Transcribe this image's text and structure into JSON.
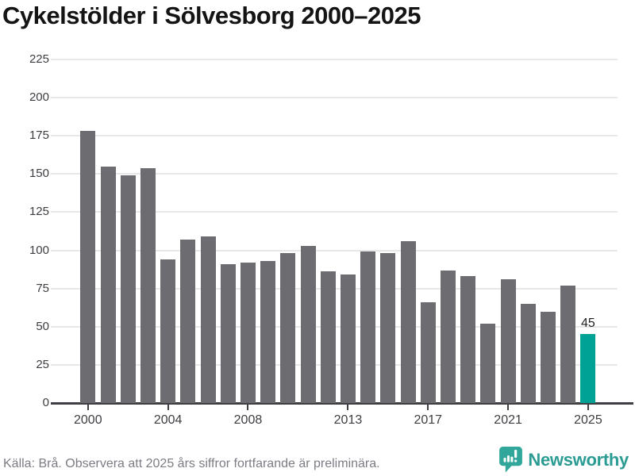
{
  "title": "Cykelstölder i Sölvesborg 2000–2025",
  "source_note": "Källa: Brå. Observera att 2025 års siffror fortfarande är preliminära.",
  "branding": {
    "name": "Newsworthy",
    "icon": "newsworthy-bubble-barchart-icon"
  },
  "colors": {
    "bar": "#6d6d71",
    "highlight": "#00a296",
    "grid": "#e7e7e7",
    "axis": "#3e3e43",
    "tick_text": "#3d3d42",
    "title_text": "#141414",
    "footer_text": "#7c7c84",
    "brand_teal": "#2b9c93",
    "brand_bubble": "#31a79c"
  },
  "chart_data": {
    "type": "bar",
    "title": "Cykelstölder i Sölvesborg 2000–2025",
    "xlabel": "",
    "ylabel": "",
    "categories": [
      "2000",
      "2001",
      "2002",
      "2003",
      "2004",
      "2005",
      "2006",
      "2007",
      "2008",
      "2009",
      "2010",
      "2011",
      "2012",
      "2013",
      "2014",
      "2015",
      "2016",
      "2017",
      "2018",
      "2019",
      "2020",
      "2021",
      "2022",
      "2023",
      "2024",
      "2025"
    ],
    "values": [
      178,
      155,
      149,
      154,
      94,
      107,
      109,
      91,
      92,
      93,
      98,
      103,
      86,
      84,
      99,
      98,
      106,
      66,
      87,
      83,
      52,
      81,
      65,
      60,
      77,
      45
    ],
    "highlight_index": 25,
    "highlight_label": "45",
    "ylim": [
      0,
      225
    ],
    "yticks": [
      0,
      25,
      50,
      75,
      100,
      125,
      150,
      175,
      200,
      225
    ],
    "xticks_shown": [
      "2000",
      "2004",
      "2008",
      "2013",
      "2017",
      "2021",
      "2025"
    ],
    "grid": "horizontal",
    "legend": "none",
    "bar_color_note": "all bars gray except final year highlighted teal with value label"
  }
}
